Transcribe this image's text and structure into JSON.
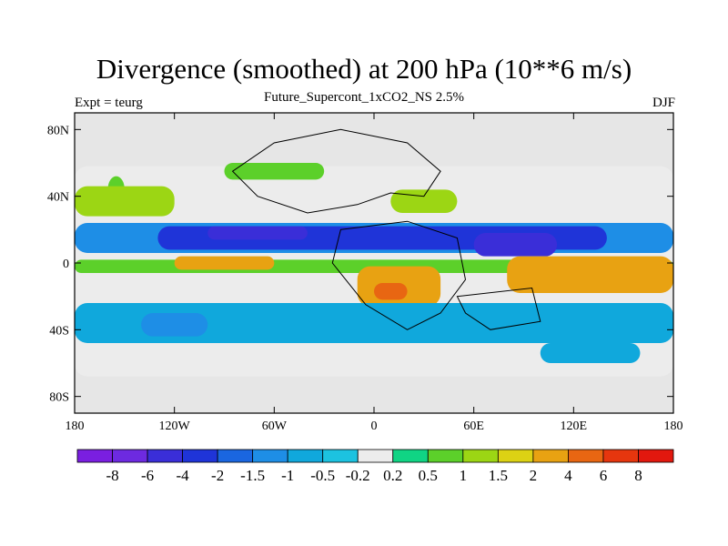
{
  "header": {
    "title": "Divergence (smoothed) at 200 hPa (10**6 m/s)",
    "subtitle": "Future_Supercont_1xCO2_NS 2.5%",
    "left_note": "Expt = teurg",
    "right_note": "DJF"
  },
  "chart_data": {
    "type": "heatmap",
    "title": "Divergence (smoothed) at 200 hPa (10**6 m/s)",
    "subtitle": "Future_Supercont_1xCO2_NS 2.5%",
    "experiment": "Expt = teurg",
    "season": "DJF",
    "xlabel": "",
    "ylabel": "",
    "xlim": [
      -180,
      180
    ],
    "ylim": [
      -90,
      90
    ],
    "x_ticks": [
      {
        "value": -180,
        "label": "180"
      },
      {
        "value": -120,
        "label": "120W"
      },
      {
        "value": -60,
        "label": "60W"
      },
      {
        "value": 0,
        "label": "0"
      },
      {
        "value": 60,
        "label": "60E"
      },
      {
        "value": 120,
        "label": "120E"
      },
      {
        "value": 180,
        "label": "180"
      }
    ],
    "y_ticks": [
      {
        "value": 80,
        "label": "80N"
      },
      {
        "value": 40,
        "label": "40N"
      },
      {
        "value": 0,
        "label": "0"
      },
      {
        "value": -40,
        "label": "40S"
      },
      {
        "value": -80,
        "label": "80S"
      }
    ],
    "missing_color": "#e6e6e6",
    "levels": [
      "-8",
      "-6",
      "-4",
      "-2",
      "-1.5",
      "-1",
      "-0.5",
      "-0.2",
      "0.2",
      "0.5",
      "1",
      "1.5",
      "2",
      "4",
      "6",
      "8"
    ],
    "colors": [
      "#7a1fe0",
      "#6d2ae0",
      "#3a2ed8",
      "#1f34d8",
      "#1a66e0",
      "#1e8ee6",
      "#10a8dc",
      "#1cc2e0",
      "#ececec",
      "#10d484",
      "#5cd02a",
      "#9cd614",
      "#dcd214",
      "#e8a212",
      "#e86612",
      "#e6360e",
      "#e2180e"
    ],
    "regions": [
      {
        "lon": [
          -180,
          180
        ],
        "lat": [
          -68,
          58
        ],
        "value": 0.0
      },
      {
        "lon": [
          -160,
          -150
        ],
        "lat": [
          30,
          52
        ],
        "value": 0.6
      },
      {
        "lon": [
          -180,
          -120
        ],
        "lat": [
          28,
          46
        ],
        "value": 1.2
      },
      {
        "lon": [
          -180,
          180
        ],
        "lat": [
          6,
          24
        ],
        "value": -1.2
      },
      {
        "lon": [
          -130,
          140
        ],
        "lat": [
          8,
          22
        ],
        "value": -2.5
      },
      {
        "lon": [
          -100,
          -40
        ],
        "lat": [
          14,
          22
        ],
        "value": -4.5
      },
      {
        "lon": [
          60,
          110
        ],
        "lat": [
          4,
          18
        ],
        "value": -4.5
      },
      {
        "lon": [
          -180,
          180
        ],
        "lat": [
          -6,
          2
        ],
        "value": 0.6
      },
      {
        "lon": [
          -120,
          -60
        ],
        "lat": [
          -4,
          4
        ],
        "value": 2.5
      },
      {
        "lon": [
          80,
          180
        ],
        "lat": [
          -18,
          4
        ],
        "value": 2.2
      },
      {
        "lon": [
          -10,
          40
        ],
        "lat": [
          -26,
          -2
        ],
        "value": 2.5
      },
      {
        "lon": [
          0,
          20
        ],
        "lat": [
          -22,
          -12
        ],
        "value": 5.0
      },
      {
        "lon": [
          -180,
          180
        ],
        "lat": [
          -48,
          -24
        ],
        "value": -0.7
      },
      {
        "lon": [
          -140,
          -100
        ],
        "lat": [
          -44,
          -30
        ],
        "value": -1.5
      },
      {
        "lon": [
          -40,
          60
        ],
        "lat": [
          -36,
          -28
        ],
        "value": -1.0
      },
      {
        "lon": [
          100,
          160
        ],
        "lat": [
          -60,
          -48
        ],
        "value": -0.6
      },
      {
        "lon": [
          -90,
          -30
        ],
        "lat": [
          50,
          60
        ],
        "value": 0.8
      },
      {
        "lon": [
          10,
          50
        ],
        "lat": [
          30,
          44
        ],
        "value": 1.0
      }
    ]
  }
}
